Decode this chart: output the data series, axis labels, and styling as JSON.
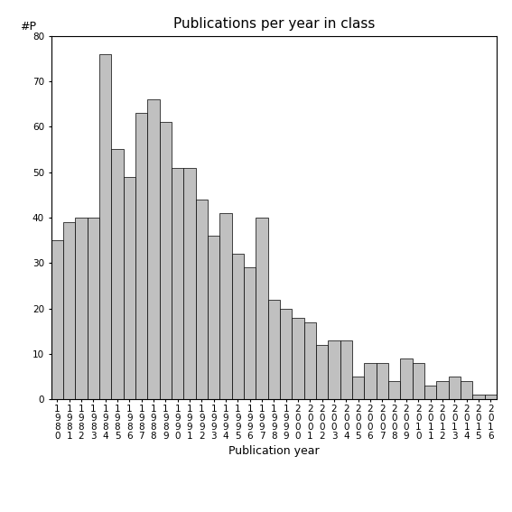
{
  "title": "Publications per year in class",
  "xlabel": "Publication year",
  "ylabel": "#P",
  "years": [
    "1980",
    "1981",
    "1982",
    "1983",
    "1984",
    "1985",
    "1986",
    "1987",
    "1988",
    "1989",
    "1990",
    "1991",
    "1992",
    "1993",
    "1994",
    "1995",
    "1996",
    "1997",
    "1998",
    "1999",
    "2000",
    "2001",
    "2002",
    "2003",
    "2004",
    "2005",
    "2006",
    "2007",
    "2008",
    "2009",
    "2010",
    "2011",
    "2012",
    "2013",
    "2014",
    "2015",
    "2016"
  ],
  "values": [
    35,
    39,
    40,
    40,
    76,
    55,
    49,
    63,
    66,
    61,
    51,
    51,
    44,
    36,
    41,
    32,
    29,
    40,
    22,
    20,
    18,
    17,
    12,
    13,
    13,
    5,
    8,
    8,
    4,
    9,
    8,
    3,
    4,
    5,
    4,
    1,
    1
  ],
  "bar_color": "#c0c0c0",
  "bar_edge_color": "#000000",
  "bar_edge_width": 0.5,
  "ylim": [
    0,
    80
  ],
  "yticks": [
    0,
    10,
    20,
    30,
    40,
    50,
    60,
    70,
    80
  ],
  "background_color": "#ffffff",
  "title_fontsize": 11,
  "axis_label_fontsize": 9,
  "tick_fontsize": 7.5
}
